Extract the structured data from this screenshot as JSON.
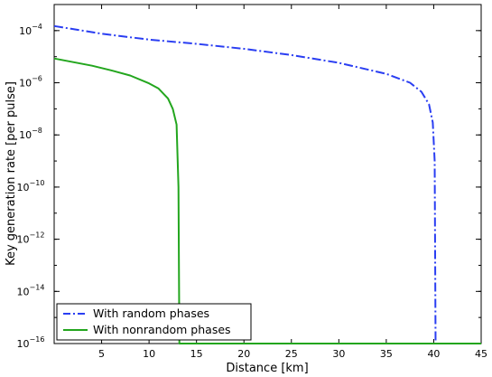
{
  "chart_data": {
    "type": "line",
    "xlabel": "Distance [km]",
    "ylabel": "Key generation rate [per pulse]",
    "xlim": [
      0,
      45
    ],
    "ylim_exp": [
      -16,
      -3
    ],
    "y_scale": "log",
    "grid": false,
    "legend_position": "bottom-left",
    "x_ticks": [
      "5",
      "10",
      "15",
      "20",
      "25",
      "30",
      "35",
      "40",
      "45"
    ],
    "y_ticks": [
      {
        "base": "10",
        "exp": "−4"
      },
      {
        "base": "10",
        "exp": "−6"
      },
      {
        "base": "10",
        "exp": "−8"
      },
      {
        "base": "10",
        "exp": "−10"
      },
      {
        "base": "10",
        "exp": "−12"
      },
      {
        "base": "10",
        "exp": "−14"
      },
      {
        "base": "10",
        "exp": "−16"
      }
    ],
    "series": [
      {
        "name": "With random phases",
        "color": "#2a3ef2",
        "dash": "dashdot",
        "points": [
          [
            0,
            0.00015
          ],
          [
            5,
            7.6e-05
          ],
          [
            10,
            4.5e-05
          ],
          [
            15,
            3.1e-05
          ],
          [
            20,
            2e-05
          ],
          [
            25,
            1.15e-05
          ],
          [
            30,
            5.8e-06
          ],
          [
            35,
            2.2e-06
          ],
          [
            37.5,
            1e-06
          ],
          [
            38.7,
            4.5e-07
          ],
          [
            39.5,
            1.5e-07
          ],
          [
            39.9,
            3e-08
          ],
          [
            40.1,
            1e-09
          ],
          [
            40.2,
            1e-16
          ],
          [
            45,
            1e-16
          ]
        ]
      },
      {
        "name": "With nonrandom phases",
        "color": "#23a61e",
        "dash": "solid",
        "points": [
          [
            0,
            8.5e-06
          ],
          [
            2,
            6.2e-06
          ],
          [
            4,
            4.5e-06
          ],
          [
            6,
            3e-06
          ],
          [
            8,
            1.9e-06
          ],
          [
            10,
            9.5e-07
          ],
          [
            11,
            6e-07
          ],
          [
            12,
            2.5e-07
          ],
          [
            12.5,
            1e-07
          ],
          [
            12.9,
            2.5e-08
          ],
          [
            13.1,
            1e-10
          ],
          [
            13.2,
            1e-16
          ],
          [
            45,
            1e-16
          ]
        ]
      }
    ]
  }
}
